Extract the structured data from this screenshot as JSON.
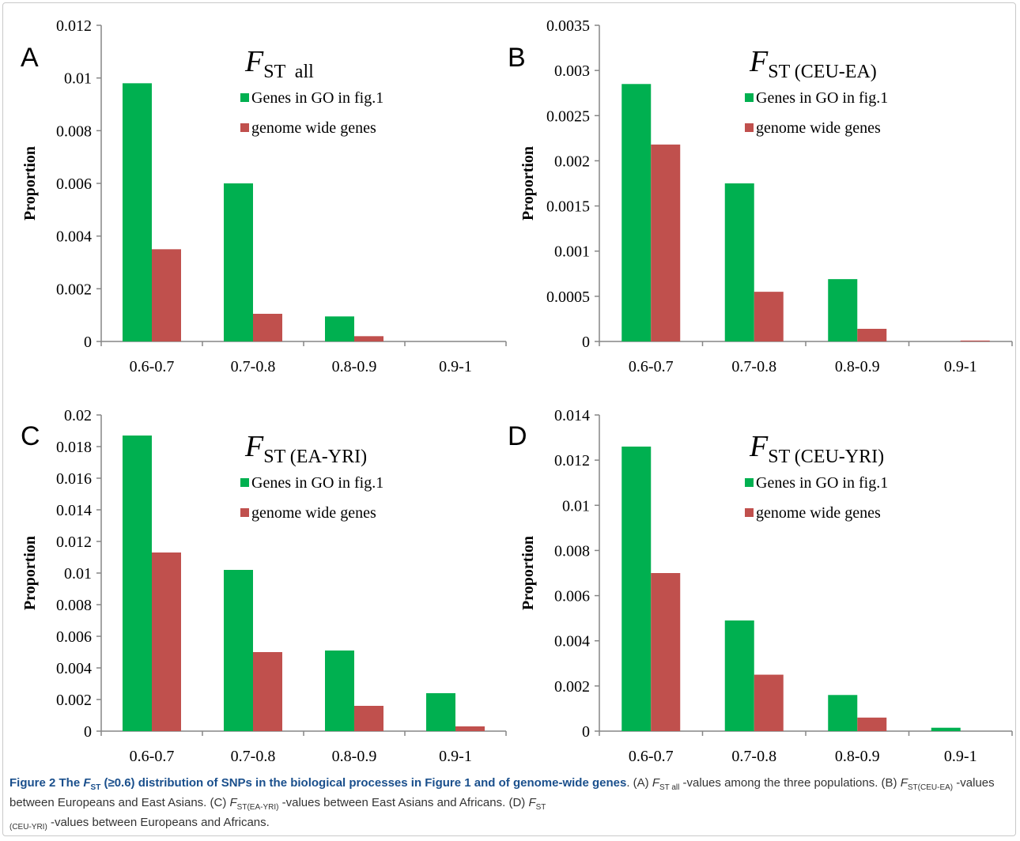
{
  "series_colors": {
    "genes_go": "#00b050",
    "genome_wide": "#c0504d"
  },
  "chart_data": [
    {
      "type": "bar",
      "panel_letter": "A",
      "title_main": "F",
      "title_sub": "ST  all",
      "categories": [
        "0.6-0.7",
        "0.7-0.8",
        "0.8-0.9",
        "0.9-1"
      ],
      "series": [
        {
          "name": "Genes in GO in fig.1",
          "values": [
            0.0098,
            0.006,
            0.00095,
            0
          ]
        },
        {
          "name": "genome wide genes",
          "values": [
            0.0035,
            0.00105,
            0.0002,
            0
          ]
        }
      ],
      "ylabel": "Proportion",
      "ylim": [
        0,
        0.012
      ],
      "yticks": [
        "0",
        "0.002",
        "0.004",
        "0.006",
        "0.008",
        "0.01",
        "0.012"
      ],
      "legend": "top-right"
    },
    {
      "type": "bar",
      "panel_letter": "B",
      "title_main": "F",
      "title_sub": "ST (CEU-EA)",
      "categories": [
        "0.6-0.7",
        "0.7-0.8",
        "0.8-0.9",
        "0.9-1"
      ],
      "series": [
        {
          "name": "Genes in GO in fig.1",
          "values": [
            0.00285,
            0.00175,
            0.00069,
            0
          ]
        },
        {
          "name": "genome wide genes",
          "values": [
            0.00218,
            0.00055,
            0.00014,
            1e-05
          ]
        }
      ],
      "ylabel": "Proportion",
      "ylim": [
        0,
        0.0035
      ],
      "yticks": [
        "0",
        "0.0005",
        "0.001",
        "0.0015",
        "0.002",
        "0.0025",
        "0.003",
        "0.0035"
      ],
      "legend": "top-right"
    },
    {
      "type": "bar",
      "panel_letter": "C",
      "title_main": "F",
      "title_sub": "ST (EA-YRI)",
      "categories": [
        "0.6-0.7",
        "0.7-0.8",
        "0.8-0.9",
        "0.9-1"
      ],
      "series": [
        {
          "name": "Genes in GO in fig.1",
          "values": [
            0.0187,
            0.0102,
            0.0051,
            0.0024
          ]
        },
        {
          "name": "genome wide genes",
          "values": [
            0.0113,
            0.005,
            0.0016,
            0.0003
          ]
        }
      ],
      "ylabel": "Proportion",
      "ylim": [
        0,
        0.02
      ],
      "yticks": [
        "0",
        "0.002",
        "0.004",
        "0.006",
        "0.008",
        "0.01",
        "0.012",
        "0.014",
        "0.016",
        "0.018",
        "0.02"
      ],
      "legend": "top-right"
    },
    {
      "type": "bar",
      "panel_letter": "D",
      "title_main": "F",
      "title_sub": "ST (CEU-YRI)",
      "categories": [
        "0.6-0.7",
        "0.7-0.8",
        "0.8-0.9",
        "0.9-1"
      ],
      "series": [
        {
          "name": "Genes in GO in fig.1",
          "values": [
            0.0126,
            0.0049,
            0.0016,
            0.00015
          ]
        },
        {
          "name": "genome wide genes",
          "values": [
            0.007,
            0.0025,
            0.0006,
            0
          ]
        }
      ],
      "ylabel": "Proportion",
      "ylim": [
        0,
        0.014
      ],
      "yticks": [
        "0",
        "0.002",
        "0.004",
        "0.006",
        "0.008",
        "0.01",
        "0.012",
        "0.014"
      ],
      "legend": "top-right"
    }
  ],
  "caption": {
    "lead_1": "Figure 2 The ",
    "lead_f": "F",
    "lead_sub": "ST",
    "lead_2": " (≥0.6) distribution of SNPs in the biological processes in Figure 1 and of genome-wide genes",
    "line_1_end": ". (A) ",
    "a_f": "F",
    "a_sub": "ST all",
    "a_text": " -values among",
    "line_2_start": "the three populations. (B) ",
    "b_f": "F",
    "b_sub": "ST(CEU-EA)",
    "b_text": " -values between Europeans and East Asians. (C) ",
    "c_f": "F",
    "c_sub": "ST(EA-YRI)",
    "c_text": " -values between East Asians and Africans. (D) ",
    "d_f": "F",
    "d_sub": "ST",
    "d_sub2": "(CEU-YRI)",
    "d_text": " -values between Europeans and Africans."
  }
}
